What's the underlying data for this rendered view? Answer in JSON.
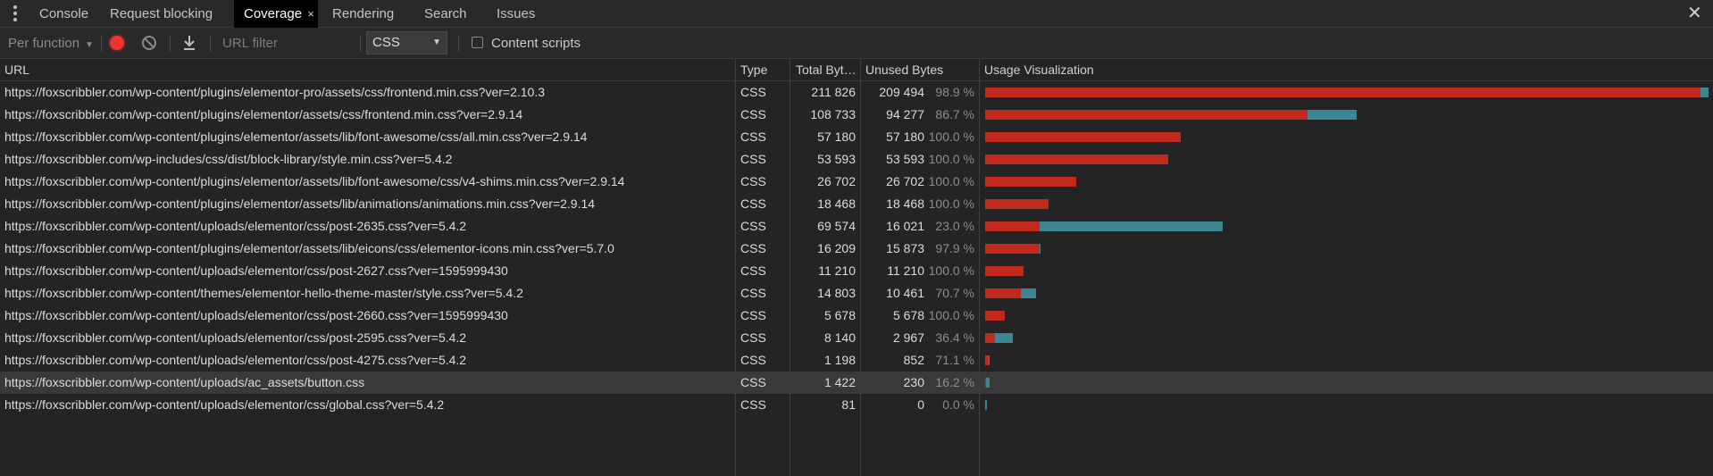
{
  "tabs": [
    {
      "label": "Console"
    },
    {
      "label": "Request blocking"
    },
    {
      "label": "Coverage"
    },
    {
      "label": "Rendering"
    },
    {
      "label": "Search"
    },
    {
      "label": "Issues"
    }
  ],
  "icons": {
    "more": "more-vertical-icon",
    "tab_close": "×",
    "panel_close": "✕",
    "record": "record-icon",
    "clear": "clear-icon",
    "export": "download-icon",
    "caret": "▼"
  },
  "toolbar": {
    "mode_label": "Per function",
    "url_filter_placeholder": "URL filter",
    "type_value": "CSS",
    "content_scripts_label": "Content scripts"
  },
  "columns": {
    "url": "URL",
    "type": "Type",
    "total": "Total Byt…",
    "unused": "Unused Bytes",
    "viz": "Usage Visualization"
  },
  "colors": {
    "used": "#c2291d",
    "unused_bar": "#3e8592",
    "background": "#242424"
  },
  "rows": [
    {
      "url": "https://foxscribbler.com/wp-content/plugins/elementor-pro/assets/css/frontend.min.css?ver=2.10.3",
      "type": "CSS",
      "total": "211 826",
      "unused": "209 494",
      "pct": "98.9 %",
      "total_bytes": 211826,
      "unused_bytes": 209494
    },
    {
      "url": "https://foxscribbler.com/wp-content/plugins/elementor/assets/css/frontend.min.css?ver=2.9.14",
      "type": "CSS",
      "total": "108 733",
      "unused": "94 277",
      "pct": "86.7 %",
      "total_bytes": 108733,
      "unused_bytes": 94277
    },
    {
      "url": "https://foxscribbler.com/wp-content/plugins/elementor/assets/lib/font-awesome/css/all.min.css?ver=2.9.14",
      "type": "CSS",
      "total": "57 180",
      "unused": "57 180",
      "pct": "100.0 %",
      "total_bytes": 57180,
      "unused_bytes": 57180
    },
    {
      "url": "https://foxscribbler.com/wp-includes/css/dist/block-library/style.min.css?ver=5.4.2",
      "type": "CSS",
      "total": "53 593",
      "unused": "53 593",
      "pct": "100.0 %",
      "total_bytes": 53593,
      "unused_bytes": 53593
    },
    {
      "url": "https://foxscribbler.com/wp-content/plugins/elementor/assets/lib/font-awesome/css/v4-shims.min.css?ver=2.9.14",
      "type": "CSS",
      "total": "26 702",
      "unused": "26 702",
      "pct": "100.0 %",
      "total_bytes": 26702,
      "unused_bytes": 26702
    },
    {
      "url": "https://foxscribbler.com/wp-content/plugins/elementor/assets/lib/animations/animations.min.css?ver=2.9.14",
      "type": "CSS",
      "total": "18 468",
      "unused": "18 468",
      "pct": "100.0 %",
      "total_bytes": 18468,
      "unused_bytes": 18468
    },
    {
      "url": "https://foxscribbler.com/wp-content/uploads/elementor/css/post-2635.css?ver=5.4.2",
      "type": "CSS",
      "total": "69 574",
      "unused": "16 021",
      "pct": "23.0 %",
      "total_bytes": 69574,
      "unused_bytes": 16021
    },
    {
      "url": "https://foxscribbler.com/wp-content/plugins/elementor/assets/lib/eicons/css/elementor-icons.min.css?ver=5.7.0",
      "type": "CSS",
      "total": "16 209",
      "unused": "15 873",
      "pct": "97.9 %",
      "total_bytes": 16209,
      "unused_bytes": 15873
    },
    {
      "url": "https://foxscribbler.com/wp-content/uploads/elementor/css/post-2627.css?ver=1595999430",
      "type": "CSS",
      "total": "11 210",
      "unused": "11 210",
      "pct": "100.0 %",
      "total_bytes": 11210,
      "unused_bytes": 11210
    },
    {
      "url": "https://foxscribbler.com/wp-content/themes/elementor-hello-theme-master/style.css?ver=5.4.2",
      "type": "CSS",
      "total": "14 803",
      "unused": "10 461",
      "pct": "70.7 %",
      "total_bytes": 14803,
      "unused_bytes": 10461
    },
    {
      "url": "https://foxscribbler.com/wp-content/uploads/elementor/css/post-2660.css?ver=1595999430",
      "type": "CSS",
      "total": "5 678",
      "unused": "5 678",
      "pct": "100.0 %",
      "total_bytes": 5678,
      "unused_bytes": 5678
    },
    {
      "url": "https://foxscribbler.com/wp-content/uploads/elementor/css/post-2595.css?ver=5.4.2",
      "type": "CSS",
      "total": "8 140",
      "unused": "2 967",
      "pct": "36.4 %",
      "total_bytes": 8140,
      "unused_bytes": 2967
    },
    {
      "url": "https://foxscribbler.com/wp-content/uploads/elementor/css/post-4275.css?ver=5.4.2",
      "type": "CSS",
      "total": "1 198",
      "unused": "852",
      "pct": "71.1 %",
      "total_bytes": 1198,
      "unused_bytes": 852
    },
    {
      "url": "https://foxscribbler.com/wp-content/uploads/ac_assets/button.css",
      "type": "CSS",
      "total": "1 422",
      "unused": "230",
      "pct": "16.2 %",
      "total_bytes": 1422,
      "unused_bytes": 230,
      "selected": true
    },
    {
      "url": "https://foxscribbler.com/wp-content/uploads/elementor/css/global.css?ver=5.4.2",
      "type": "CSS",
      "total": "81",
      "unused": "0",
      "pct": "0.0 %",
      "total_bytes": 81,
      "unused_bytes": 0
    }
  ]
}
